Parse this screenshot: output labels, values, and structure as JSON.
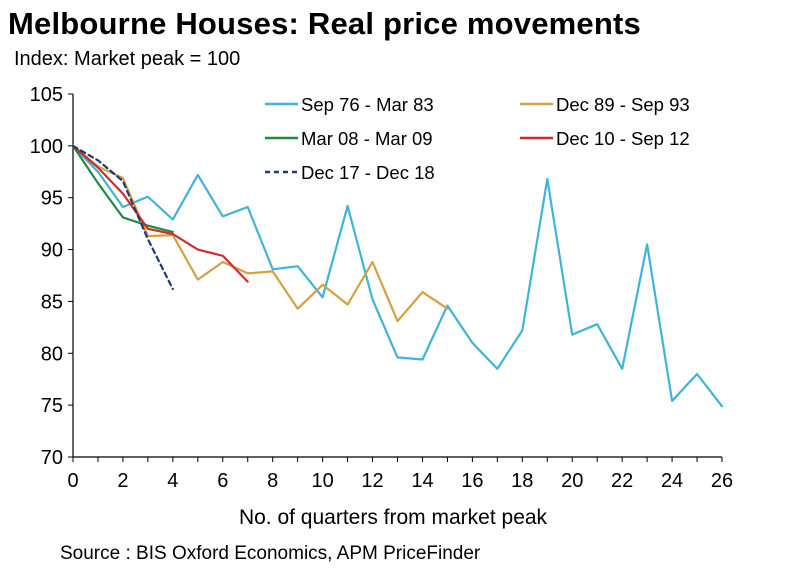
{
  "chart_data": {
    "type": "line",
    "title": "Melbourne Houses: Real price movements",
    "subtitle": "Index: Market peak = 100",
    "xlabel": "No. of quarters from market peak",
    "ylabel": "",
    "source": "Source : BIS Oxford Economics, APM PriceFinder",
    "xlim": [
      0,
      26
    ],
    "ylim": [
      70,
      105
    ],
    "x_ticks": [
      0,
      2,
      4,
      6,
      8,
      10,
      12,
      14,
      16,
      18,
      20,
      22,
      24,
      26
    ],
    "y_ticks": [
      70,
      75,
      80,
      85,
      90,
      95,
      100,
      105
    ],
    "grid": false,
    "legend": "top-right",
    "series": [
      {
        "name": "Sep 76 - Mar 83",
        "color": "#3fb3d8",
        "dash": false,
        "x": [
          0,
          1,
          2,
          3,
          4,
          5,
          6,
          7,
          8,
          9,
          10,
          11,
          12,
          13,
          14,
          15,
          16,
          17,
          18,
          19,
          20,
          21,
          22,
          23,
          24,
          25,
          26
        ],
        "y": [
          100,
          97.5,
          94.1,
          95.1,
          92.9,
          97.2,
          93.2,
          94.1,
          88.1,
          88.4,
          85.4,
          94.2,
          85.2,
          79.6,
          79.4,
          84.6,
          81.0,
          78.5,
          82.2,
          96.8,
          81.8,
          82.8,
          78.5,
          90.5,
          75.4,
          78.0,
          74.9
        ]
      },
      {
        "name": "Dec 89 - Sep 93",
        "color": "#d4a040",
        "dash": false,
        "x": [
          0,
          1,
          2,
          3,
          4,
          5,
          6,
          7,
          8,
          9,
          10,
          11,
          12,
          13,
          14,
          15
        ],
        "y": [
          100,
          98.0,
          96.9,
          91.3,
          91.4,
          87.1,
          88.8,
          87.7,
          87.9,
          84.3,
          86.6,
          84.7,
          88.8,
          83.1,
          85.9,
          84.3
        ]
      },
      {
        "name": "Mar 08 - Mar 09",
        "color": "#1e8a46",
        "dash": false,
        "x": [
          0,
          1,
          2,
          3,
          4
        ],
        "y": [
          100,
          96.4,
          93.1,
          92.3,
          91.7
        ]
      },
      {
        "name": "Dec 10 - Sep 12",
        "color": "#d42a2a",
        "dash": false,
        "x": [
          0,
          1,
          2,
          3,
          4,
          5,
          6,
          7
        ],
        "y": [
          100,
          97.9,
          95.4,
          92.0,
          91.5,
          90.0,
          89.4,
          86.9
        ]
      },
      {
        "name": "Dec 17 - Dec 18",
        "color": "#1f3a7a",
        "dash": true,
        "x": [
          0,
          1,
          2,
          3,
          4
        ],
        "y": [
          100,
          98.6,
          96.6,
          91.0,
          86.2
        ]
      }
    ]
  }
}
